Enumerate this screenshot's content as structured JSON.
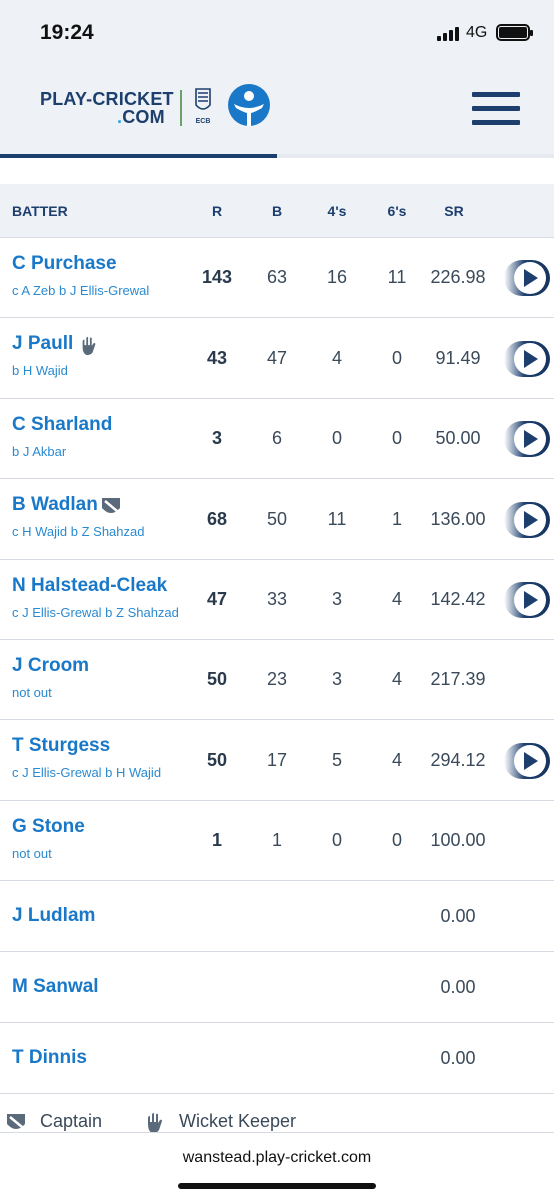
{
  "status": {
    "time": "19:24",
    "network": "4G"
  },
  "header": {
    "logo_line1": "PLAY-CRICKET",
    "logo_dot": ".",
    "logo_line2": "COM",
    "ecb_label": "ECB"
  },
  "table": {
    "headers": {
      "batter": "BATTER",
      "runs": "R",
      "balls": "B",
      "fours": "4's",
      "sixes": "6's",
      "sr": "SR"
    },
    "rows": [
      {
        "name": "C Purchase",
        "dismissal": "c A Zeb b J Ellis-Grewal",
        "runs": "143",
        "balls": "63",
        "fours": "16",
        "sixes": "11",
        "sr": "226.98",
        "role": "",
        "play": true
      },
      {
        "name": "J Paull",
        "dismissal": "b H Wajid",
        "runs": "43",
        "balls": "47",
        "fours": "4",
        "sixes": "0",
        "sr": "91.49",
        "role": "wicket-keeper",
        "play": true
      },
      {
        "name": "C Sharland",
        "dismissal": "b J Akbar",
        "runs": "3",
        "balls": "6",
        "fours": "0",
        "sixes": "0",
        "sr": "50.00",
        "role": "",
        "play": true
      },
      {
        "name": "B Wadlan",
        "dismissal": "c H Wajid b Z Shahzad",
        "runs": "68",
        "balls": "50",
        "fours": "11",
        "sixes": "1",
        "sr": "136.00",
        "role": "captain",
        "play": true
      },
      {
        "name": "N Halstead-Cleak",
        "dismissal": "c J Ellis-Grewal b Z Shahzad",
        "runs": "47",
        "balls": "33",
        "fours": "3",
        "sixes": "4",
        "sr": "142.42",
        "role": "",
        "play": true
      },
      {
        "name": "J Croom",
        "dismissal": "not out",
        "runs": "50",
        "balls": "23",
        "fours": "3",
        "sixes": "4",
        "sr": "217.39",
        "role": "",
        "play": false
      },
      {
        "name": "T Sturgess",
        "dismissal": "c J Ellis-Grewal b H Wajid",
        "runs": "50",
        "balls": "17",
        "fours": "5",
        "sixes": "4",
        "sr": "294.12",
        "role": "",
        "play": true
      },
      {
        "name": "G Stone",
        "dismissal": "not out",
        "runs": "1",
        "balls": "1",
        "fours": "0",
        "sixes": "0",
        "sr": "100.00",
        "role": "",
        "play": false
      },
      {
        "name": "J Ludlam",
        "dismissal": "",
        "runs": "",
        "balls": "",
        "fours": "",
        "sixes": "",
        "sr": "0.00",
        "role": "",
        "play": false
      },
      {
        "name": "M Sanwal",
        "dismissal": "",
        "runs": "",
        "balls": "",
        "fours": "",
        "sixes": "",
        "sr": "0.00",
        "role": "",
        "play": false
      },
      {
        "name": "T Dinnis",
        "dismissal": "",
        "runs": "",
        "balls": "",
        "fours": "",
        "sixes": "",
        "sr": "0.00",
        "role": "",
        "play": false
      }
    ]
  },
  "legend": {
    "captain": "Captain",
    "wicket_keeper": "Wicket Keeper"
  },
  "browser": {
    "url": "wanstead.play-cricket.com"
  },
  "colors": {
    "brand_navy": "#1d3f6e",
    "link_blue": "#1a78c8",
    "header_bg": "#eef1f6"
  }
}
